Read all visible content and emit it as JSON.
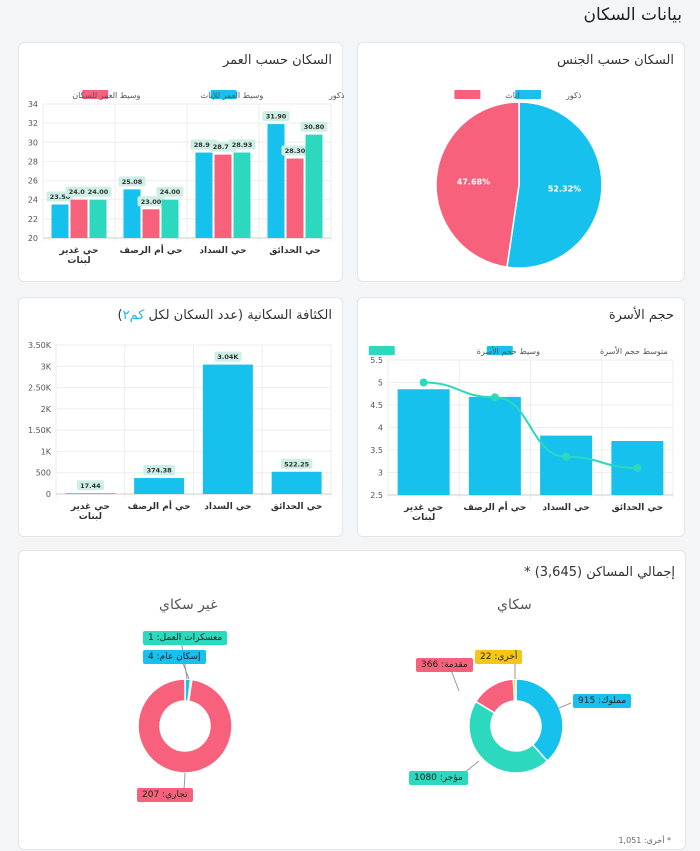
{
  "page": {
    "title": "بيانات السكان"
  },
  "colors": {
    "blue": "#17c1ee",
    "pink": "#f7617b",
    "teal": "#2cd8be",
    "yellow": "#f5c518"
  },
  "categories": [
    "حي غدير البنات",
    "حي أم الرصف",
    "حي السداد",
    "حي الحدائق"
  ],
  "age": {
    "title": "السكان حسب العمر",
    "legend": [
      "وسيط العمر للذكور",
      "وسيط العمر للإناث",
      "وسيط العمر للسكان"
    ]
  },
  "gender": {
    "title": "السكان حسب الجنس",
    "legend": [
      "ذكور",
      "اناث"
    ]
  },
  "density": {
    "title": "الكثافة السكانية (عدد السكان لكل ",
    "unit": "كم٢",
    "close": ")"
  },
  "family": {
    "title": "حجم الأسرة",
    "legend": [
      "متوسط حجم الأسرة",
      "وسيط حجم الأسرة"
    ]
  },
  "dwellings": {
    "title": "إجمالي المساكن (3,645) *",
    "residential": "سكاي",
    "non_residential": "غير سكاي",
    "footnote": "* أخرى: 1,051",
    "res_labels": [
      "مملوك: 915",
      "مؤجر: 1080",
      "مقدمة: 366",
      "أخرى: 22"
    ],
    "nonres_labels": [
      "تجاري: 207",
      "إسكان عام: 4",
      "معسكرات العمل: 1"
    ]
  },
  "chart_data": [
    {
      "type": "bar",
      "title": "السكان حسب العمر",
      "categories": [
        "حي غدير البنات",
        "حي أم الرصف",
        "حي السداد",
        "حي الحدائق"
      ],
      "ylim": [
        20,
        34
      ],
      "yticks": [
        20,
        22,
        24,
        26,
        28,
        30,
        32,
        34
      ],
      "series": [
        {
          "name": "وسيط العمر للذكور",
          "color": "#17c1ee",
          "values": [
            23.5,
            25.08,
            28.93,
            31.9
          ]
        },
        {
          "name": "وسيط العمر للإناث",
          "color": "#f7617b",
          "values": [
            24.0,
            23.0,
            28.71,
            28.3
          ]
        },
        {
          "name": "وسيط العمر للسكان",
          "color": "#2cd8be",
          "values": [
            24.0,
            24.0,
            28.93,
            30.8
          ]
        }
      ],
      "legend": "top",
      "grid": true
    },
    {
      "type": "pie",
      "title": "السكان حسب الجنس",
      "slices": [
        {
          "name": "ذكور",
          "value": 52.32,
          "label": "52.32%",
          "color": "#17c1ee"
        },
        {
          "name": "اناث",
          "value": 47.68,
          "label": "47.68%",
          "color": "#f7617b"
        }
      ],
      "legend": "top"
    },
    {
      "type": "bar",
      "title": "الكثافة السكانية (عدد السكان لكل كم٢)",
      "categories": [
        "حي غدير البنات",
        "حي أم الرصف",
        "حي السداد",
        "حي الحدائق"
      ],
      "ylim": [
        0,
        3500
      ],
      "yticks": [
        0,
        500,
        1000,
        1500,
        2000,
        2500,
        3000,
        3500
      ],
      "ytick_labels": [
        "0",
        "500",
        "1K",
        "1.50K",
        "2K",
        "2.50K",
        "3K",
        "3.50K"
      ],
      "series": [
        {
          "color": "#17c1ee",
          "values": [
            17.44,
            374.38,
            3040,
            522.25
          ],
          "labels": [
            "17.44",
            "374.38",
            "3.04K",
            "522.25"
          ]
        }
      ],
      "grid": true
    },
    {
      "type": "bar+line",
      "title": "حجم الأسرة",
      "categories": [
        "حي غدير البنات",
        "حي أم الرصف",
        "حي السداد",
        "حي الحدائق"
      ],
      "ylim": [
        2.5,
        5.5
      ],
      "yticks": [
        2.5,
        3,
        3.5,
        4,
        4.5,
        5,
        5.5
      ],
      "series": [
        {
          "name": "متوسط حجم الأسرة",
          "type": "bar",
          "color": "#17c1ee",
          "values": [
            4.85,
            4.68,
            3.82,
            3.7
          ]
        },
        {
          "name": "وسيط حجم الأسرة",
          "type": "line",
          "color": "#2cd8be",
          "values": [
            5.0,
            4.67,
            3.35,
            3.1
          ]
        }
      ],
      "legend": "top",
      "grid": true
    },
    {
      "type": "pie",
      "title": "سكاي",
      "donut": true,
      "slices": [
        {
          "name": "مملوك",
          "value": 915,
          "color": "#17c1ee"
        },
        {
          "name": "مؤجر",
          "value": 1080,
          "color": "#2cd8be"
        },
        {
          "name": "مقدمة",
          "value": 366,
          "color": "#f7617b"
        },
        {
          "name": "أخرى",
          "value": 22,
          "color": "#f5c518"
        }
      ]
    },
    {
      "type": "pie",
      "title": "غير سكاي",
      "donut": true,
      "slices": [
        {
          "name": "إسكان عام",
          "value": 4,
          "color": "#17c1ee"
        },
        {
          "name": "معسكرات العمل",
          "value": 1,
          "color": "#2cd8be"
        },
        {
          "name": "تجاري",
          "value": 207,
          "color": "#f7617b"
        }
      ]
    }
  ]
}
